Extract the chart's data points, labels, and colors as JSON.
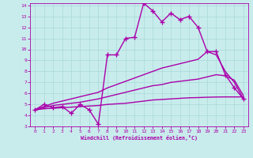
{
  "xlabel": "Windchill (Refroidissement éolien,°C)",
  "background_color": "#c8ecec",
  "grid_color": "#aad8d8",
  "line_color": "#aa00aa",
  "xlim": [
    -0.5,
    23.5
  ],
  "ylim": [
    3,
    14.2
  ],
  "xticks": [
    0,
    1,
    2,
    3,
    4,
    5,
    6,
    7,
    8,
    9,
    10,
    11,
    12,
    13,
    14,
    15,
    16,
    17,
    18,
    19,
    20,
    21,
    22,
    23
  ],
  "yticks": [
    3,
    4,
    5,
    6,
    7,
    8,
    9,
    10,
    11,
    12,
    13,
    14
  ],
  "lines": [
    {
      "x": [
        0,
        1,
        2,
        3,
        4,
        5,
        6,
        7,
        8,
        9,
        10,
        11,
        12,
        13,
        14,
        15,
        16,
        17,
        18,
        19,
        20,
        21,
        22,
        23
      ],
      "y": [
        4.5,
        5.0,
        4.7,
        4.8,
        4.2,
        5.0,
        4.5,
        3.2,
        9.5,
        9.5,
        11.0,
        11.1,
        14.2,
        13.5,
        12.5,
        13.3,
        12.7,
        13.0,
        12.0,
        9.8,
        9.8,
        7.7,
        6.5,
        5.5
      ],
      "marker": true,
      "linewidth": 1.0
    },
    {
      "x": [
        0,
        1,
        2,
        3,
        4,
        5,
        6,
        7,
        8,
        9,
        10,
        11,
        12,
        13,
        14,
        15,
        16,
        17,
        18,
        19,
        20,
        21,
        22,
        23
      ],
      "y": [
        4.5,
        4.8,
        5.1,
        5.3,
        5.5,
        5.7,
        5.9,
        6.1,
        6.5,
        6.8,
        7.1,
        7.4,
        7.7,
        8.0,
        8.3,
        8.5,
        8.7,
        8.9,
        9.1,
        9.8,
        9.5,
        8.0,
        7.0,
        5.5
      ],
      "marker": false,
      "linewidth": 1.0
    },
    {
      "x": [
        0,
        1,
        2,
        3,
        4,
        5,
        6,
        7,
        8,
        9,
        10,
        11,
        12,
        13,
        14,
        15,
        16,
        17,
        18,
        19,
        20,
        21,
        22,
        23
      ],
      "y": [
        4.5,
        4.7,
        4.9,
        5.0,
        5.1,
        5.2,
        5.35,
        5.5,
        5.7,
        5.9,
        6.1,
        6.3,
        6.5,
        6.7,
        6.8,
        7.0,
        7.1,
        7.2,
        7.3,
        7.5,
        7.7,
        7.6,
        7.2,
        5.8
      ],
      "marker": false,
      "linewidth": 1.0
    },
    {
      "x": [
        0,
        1,
        2,
        3,
        4,
        5,
        6,
        7,
        8,
        9,
        10,
        11,
        12,
        13,
        14,
        15,
        16,
        17,
        18,
        19,
        20,
        21,
        22,
        23
      ],
      "y": [
        4.5,
        4.6,
        4.65,
        4.7,
        4.75,
        4.8,
        4.85,
        4.9,
        5.0,
        5.05,
        5.1,
        5.2,
        5.3,
        5.4,
        5.45,
        5.5,
        5.55,
        5.6,
        5.62,
        5.65,
        5.67,
        5.68,
        5.68,
        5.68
      ],
      "marker": false,
      "linewidth": 1.0
    }
  ]
}
